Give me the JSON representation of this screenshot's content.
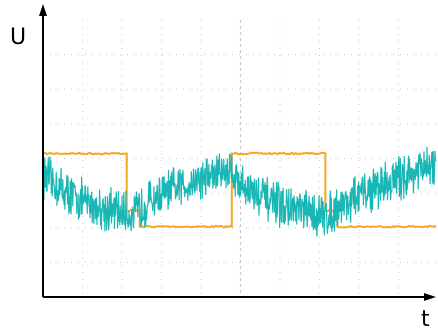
{
  "chart_data": {
    "type": "line",
    "title": "",
    "xlabel": "t",
    "ylabel": "U",
    "xlim": [
      0,
      10
    ],
    "ylim": [
      0,
      10
    ],
    "grid": true,
    "legend": "none",
    "colors": {
      "square": "#f5a623",
      "noisy": "#19b6b6",
      "axis": "#000000",
      "grid": "#c8c8c8"
    },
    "series": [
      {
        "x": [
          0,
          2.12,
          2.12,
          2.45,
          2.45,
          4.78,
          4.78,
          7.15,
          7.15,
          7.45,
          7.45,
          9.95
        ],
        "y": [
          5.18,
          5.18,
          3.12,
          3.12,
          2.54,
          2.54,
          5.18,
          5.18,
          3.12,
          3.12,
          2.54,
          2.54
        ]
      },
      {
        "x": [
          0,
          0.5,
          1.0,
          1.5,
          2.0,
          2.3,
          2.6,
          3.0,
          3.5,
          4.0,
          4.5,
          4.78,
          4.9,
          5.3,
          5.8,
          6.3,
          6.8,
          7.2,
          7.5,
          8.0,
          8.5,
          9.0,
          9.5,
          9.95
        ],
        "y": [
          4.4,
          3.85,
          3.45,
          3.2,
          3.05,
          2.95,
          3.4,
          3.7,
          4.0,
          4.3,
          4.5,
          4.65,
          4.2,
          3.8,
          3.4,
          3.15,
          3.0,
          2.95,
          3.3,
          3.65,
          4.0,
          4.3,
          4.55,
          4.75
        ]
      }
    ],
    "ytick_step": 1.25,
    "xtick_step": 1.0
  }
}
